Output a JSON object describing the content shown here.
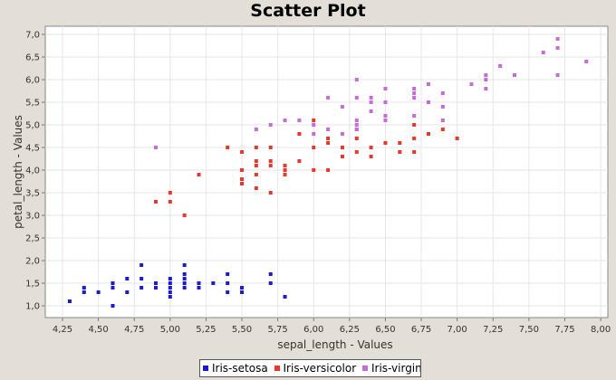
{
  "chart_data": {
    "type": "scatter",
    "title": "Scatter Plot",
    "xlabel": "sepal_length - Values",
    "ylabel": "petal_length - Values",
    "xlim": [
      4.13,
      8.05
    ],
    "ylim": [
      0.74,
      7.18
    ],
    "xticks": [
      "4,25",
      "4,50",
      "4,75",
      "5,00",
      "5,25",
      "5,50",
      "5,75",
      "6,00",
      "6,25",
      "6,50",
      "6,75",
      "7,00",
      "7,25",
      "7,50",
      "7,75",
      "8,00"
    ],
    "yticks": [
      "1,0",
      "1,5",
      "2,0",
      "2,5",
      "3,0",
      "3,5",
      "4,0",
      "4,5",
      "5,0",
      "5,5",
      "6,0",
      "6,5",
      "7,0"
    ],
    "grid": true,
    "legend_position": "bottom",
    "series": [
      {
        "name": "Iris-setosa",
        "color": "#1c1ccc",
        "points": [
          [
            4.3,
            1.1
          ],
          [
            4.4,
            1.3
          ],
          [
            4.4,
            1.4
          ],
          [
            4.5,
            1.3
          ],
          [
            4.6,
            1.0
          ],
          [
            4.6,
            1.4
          ],
          [
            4.6,
            1.5
          ],
          [
            4.7,
            1.3
          ],
          [
            4.7,
            1.6
          ],
          [
            4.8,
            1.4
          ],
          [
            4.8,
            1.6
          ],
          [
            4.8,
            1.9
          ],
          [
            4.9,
            1.4
          ],
          [
            4.9,
            1.5
          ],
          [
            5.0,
            1.2
          ],
          [
            5.0,
            1.3
          ],
          [
            5.0,
            1.4
          ],
          [
            5.0,
            1.5
          ],
          [
            5.0,
            1.6
          ],
          [
            5.1,
            1.4
          ],
          [
            5.1,
            1.5
          ],
          [
            5.1,
            1.6
          ],
          [
            5.1,
            1.7
          ],
          [
            5.1,
            1.9
          ],
          [
            5.2,
            1.4
          ],
          [
            5.2,
            1.5
          ],
          [
            5.3,
            1.5
          ],
          [
            5.4,
            1.3
          ],
          [
            5.4,
            1.5
          ],
          [
            5.4,
            1.7
          ],
          [
            5.5,
            1.3
          ],
          [
            5.5,
            1.4
          ],
          [
            5.7,
            1.5
          ],
          [
            5.7,
            1.7
          ],
          [
            5.8,
            1.2
          ]
        ]
      },
      {
        "name": "Iris-versicolor",
        "color": "#e8382e",
        "points": [
          [
            4.9,
            3.3
          ],
          [
            5.0,
            3.3
          ],
          [
            5.0,
            3.5
          ],
          [
            5.1,
            3.0
          ],
          [
            5.2,
            3.9
          ],
          [
            5.4,
            4.5
          ],
          [
            5.5,
            3.7
          ],
          [
            5.5,
            3.8
          ],
          [
            5.5,
            4.0
          ],
          [
            5.5,
            4.4
          ],
          [
            5.6,
            3.6
          ],
          [
            5.6,
            3.9
          ],
          [
            5.6,
            4.1
          ],
          [
            5.6,
            4.2
          ],
          [
            5.6,
            4.5
          ],
          [
            5.7,
            3.5
          ],
          [
            5.7,
            4.1
          ],
          [
            5.7,
            4.2
          ],
          [
            5.7,
            4.5
          ],
          [
            5.8,
            3.9
          ],
          [
            5.8,
            4.0
          ],
          [
            5.8,
            4.1
          ],
          [
            5.9,
            4.2
          ],
          [
            5.9,
            4.8
          ],
          [
            6.0,
            4.0
          ],
          [
            6.0,
            4.5
          ],
          [
            6.0,
            5.1
          ],
          [
            6.1,
            4.0
          ],
          [
            6.1,
            4.6
          ],
          [
            6.1,
            4.7
          ],
          [
            6.2,
            4.3
          ],
          [
            6.2,
            4.5
          ],
          [
            6.3,
            4.4
          ],
          [
            6.3,
            4.7
          ],
          [
            6.3,
            4.9
          ],
          [
            6.4,
            4.3
          ],
          [
            6.4,
            4.5
          ],
          [
            6.5,
            4.6
          ],
          [
            6.6,
            4.4
          ],
          [
            6.6,
            4.6
          ],
          [
            6.7,
            4.4
          ],
          [
            6.7,
            4.7
          ],
          [
            6.7,
            5.0
          ],
          [
            6.8,
            4.8
          ],
          [
            6.9,
            4.9
          ],
          [
            7.0,
            4.7
          ]
        ]
      },
      {
        "name": "Iris-virginica",
        "color": "#c66cd8",
        "points": [
          [
            4.9,
            4.5
          ],
          [
            5.6,
            4.9
          ],
          [
            5.7,
            5.0
          ],
          [
            5.8,
            5.1
          ],
          [
            5.9,
            5.1
          ],
          [
            6.0,
            4.8
          ],
          [
            6.0,
            5.0
          ],
          [
            6.1,
            4.9
          ],
          [
            6.1,
            5.6
          ],
          [
            6.2,
            4.8
          ],
          [
            6.2,
            5.4
          ],
          [
            6.3,
            4.9
          ],
          [
            6.3,
            5.0
          ],
          [
            6.3,
            5.1
          ],
          [
            6.3,
            5.6
          ],
          [
            6.3,
            6.0
          ],
          [
            6.4,
            5.3
          ],
          [
            6.4,
            5.5
          ],
          [
            6.4,
            5.6
          ],
          [
            6.5,
            5.1
          ],
          [
            6.5,
            5.2
          ],
          [
            6.5,
            5.5
          ],
          [
            6.5,
            5.8
          ],
          [
            6.7,
            5.2
          ],
          [
            6.7,
            5.6
          ],
          [
            6.7,
            5.7
          ],
          [
            6.7,
            5.8
          ],
          [
            6.8,
            5.5
          ],
          [
            6.8,
            5.9
          ],
          [
            6.9,
            5.1
          ],
          [
            6.9,
            5.4
          ],
          [
            6.9,
            5.7
          ],
          [
            7.1,
            5.9
          ],
          [
            7.2,
            5.8
          ],
          [
            7.2,
            6.0
          ],
          [
            7.2,
            6.1
          ],
          [
            7.3,
            6.3
          ],
          [
            7.4,
            6.1
          ],
          [
            7.6,
            6.6
          ],
          [
            7.7,
            6.1
          ],
          [
            7.7,
            6.7
          ],
          [
            7.7,
            6.9
          ],
          [
            7.9,
            6.4
          ]
        ]
      }
    ]
  }
}
